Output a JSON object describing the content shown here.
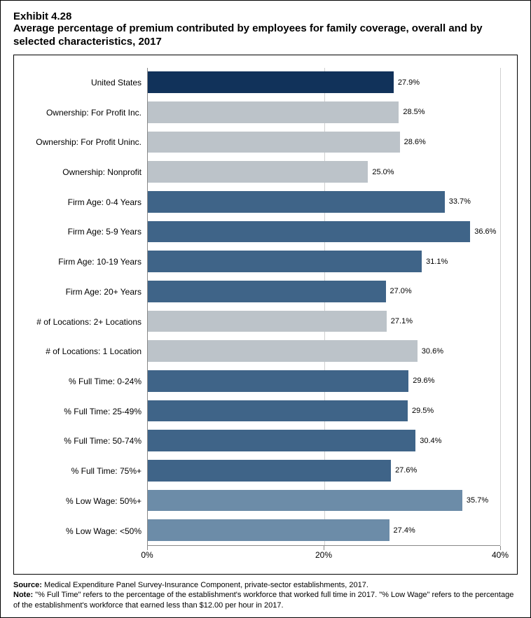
{
  "header": {
    "exhibit_number": "Exhibit 4.28",
    "title": "Average percentage of premium contributed by employees for family coverage, overall and by selected characteristics, 2017"
  },
  "chart": {
    "type": "bar-horizontal",
    "xlim": [
      0,
      40
    ],
    "xtick_positions": [
      0,
      20,
      40
    ],
    "xtick_labels": [
      "0%",
      "20%",
      "40%"
    ],
    "gridline_color": "#d0d0d0",
    "axis_color": "#888888",
    "background_color": "#ffffff",
    "label_fontsize": 12,
    "value_fontsize": 11,
    "colors": {
      "dark_navy": "#11325a",
      "light_gray": "#bcc3c9",
      "mid_blue": "#3f6488",
      "steel_blue": "#6c8ca8"
    },
    "bars": [
      {
        "label": "United States",
        "value": 27.9,
        "value_label": "27.9%",
        "color": "#11325a"
      },
      {
        "label": "Ownership: For Profit Inc.",
        "value": 28.5,
        "value_label": "28.5%",
        "color": "#bcc3c9"
      },
      {
        "label": "Ownership: For Profit Uninc.",
        "value": 28.6,
        "value_label": "28.6%",
        "color": "#bcc3c9"
      },
      {
        "label": "Ownership: Nonprofit",
        "value": 25.0,
        "value_label": "25.0%",
        "color": "#bcc3c9"
      },
      {
        "label": "Firm Age: 0-4 Years",
        "value": 33.7,
        "value_label": "33.7%",
        "color": "#3f6488"
      },
      {
        "label": "Firm Age: 5-9 Years",
        "value": 36.6,
        "value_label": "36.6%",
        "color": "#3f6488"
      },
      {
        "label": "Firm Age: 10-19 Years",
        "value": 31.1,
        "value_label": "31.1%",
        "color": "#3f6488"
      },
      {
        "label": "Firm Age: 20+ Years",
        "value": 27.0,
        "value_label": "27.0%",
        "color": "#3f6488"
      },
      {
        "label": "# of Locations: 2+ Locations",
        "value": 27.1,
        "value_label": "27.1%",
        "color": "#bcc3c9"
      },
      {
        "label": "# of Locations: 1 Location",
        "value": 30.6,
        "value_label": "30.6%",
        "color": "#bcc3c9"
      },
      {
        "label": "% Full Time: 0-24%",
        "value": 29.6,
        "value_label": "29.6%",
        "color": "#3f6488"
      },
      {
        "label": "% Full Time: 25-49%",
        "value": 29.5,
        "value_label": "29.5%",
        "color": "#3f6488"
      },
      {
        "label": "% Full Time: 50-74%",
        "value": 30.4,
        "value_label": "30.4%",
        "color": "#3f6488"
      },
      {
        "label": "% Full Time: 75%+",
        "value": 27.6,
        "value_label": "27.6%",
        "color": "#3f6488"
      },
      {
        "label": "% Low Wage: 50%+",
        "value": 35.7,
        "value_label": "35.7%",
        "color": "#6c8ca8"
      },
      {
        "label": "% Low Wage: <50%",
        "value": 27.4,
        "value_label": "27.4%",
        "color": "#6c8ca8"
      }
    ]
  },
  "footnotes": {
    "source_label": "Source:",
    "source_text": " Medical Expenditure Panel Survey-Insurance Component, private-sector establishments, 2017.",
    "note_label": "Note:",
    "note_text": " \"% Full Time\" refers to the percentage of the establishment's workforce that worked full time in 2017. \"% Low Wage\" refers to the percentage of the establishment's workforce that earned less than $12.00 per hour in 2017."
  }
}
